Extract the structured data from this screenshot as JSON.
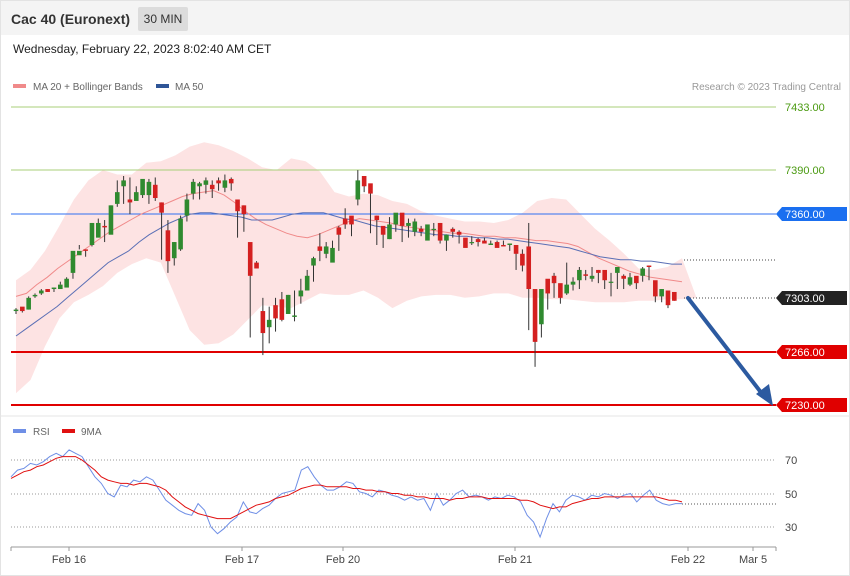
{
  "header": {
    "title": "Cac 40 (Euronext)",
    "interval": "30 MIN",
    "datetime": "Wednesday, February 22, 2023 8:02:40 AM CET"
  },
  "legend": {
    "ma20_label": "MA 20 + Bollinger Bands",
    "ma50_label": "MA 50",
    "credit": "Research © 2023 Trading Central",
    "rsi_label": "RSI",
    "rsi_ma_label": "9MA"
  },
  "colors": {
    "bull": "#2f8a2f",
    "bear": "#d42020",
    "ma20": "#f08a8a",
    "ma50": "#5a6fb5",
    "bollinger": "#fde3e3",
    "resistance": "#a8cf7a",
    "pivot": "#2f6ff0",
    "support": "#e00000",
    "arrow": "#2c5aa0",
    "rsi": "#6f8fe6",
    "rsi_ma": "#e01010"
  },
  "chart_data": {
    "type": "candlestick",
    "ylim": [
      7416,
      7236
    ],
    "levels": [
      {
        "value": 7433.0,
        "label": "7433.00",
        "kind": "resistance"
      },
      {
        "value": 7390.0,
        "label": "7390.00",
        "kind": "resistance"
      },
      {
        "value": 7360.0,
        "label": "7360.00",
        "kind": "pivot"
      },
      {
        "value": 7303.0,
        "label": "7303.00",
        "kind": "last"
      },
      {
        "value": 7266.0,
        "label": "7266.00",
        "kind": "support"
      },
      {
        "value": 7230.0,
        "label": "7230.00",
        "kind": "support"
      }
    ],
    "x_ticks": [
      "Feb 16",
      "Feb 17",
      "Feb 20",
      "Feb 21",
      "Feb 22",
      "Mar 5"
    ],
    "candles": [
      [
        7294,
        7295,
        7296,
        7292
      ],
      [
        7297,
        7294,
        7294,
        7293
      ],
      [
        7295,
        7303,
        7304,
        7295
      ],
      [
        7304,
        7305,
        7306,
        7303
      ],
      [
        7306,
        7308,
        7309,
        7305
      ],
      [
        7309,
        7307,
        7309,
        7307
      ],
      [
        7309,
        7310,
        7310,
        7307
      ],
      [
        7309,
        7312,
        7314,
        7312
      ],
      [
        7310,
        7316,
        7317,
        7314
      ],
      [
        7320,
        7335,
        7331,
        7316
      ],
      [
        7332,
        7335,
        7339,
        7336
      ],
      [
        7336,
        7335,
        7336,
        7331
      ],
      [
        7339,
        7354,
        7354,
        7338
      ],
      [
        7344,
        7354,
        7357,
        7351
      ],
      [
        7352,
        7351,
        7356,
        7341
      ],
      [
        7346,
        7366,
        7366,
        7358
      ],
      [
        7367,
        7375,
        7383,
        7365
      ],
      [
        7379,
        7383,
        7386,
        7367
      ],
      [
        7370,
        7368,
        7385,
        7360
      ],
      [
        7369,
        7375,
        7379,
        7371
      ],
      [
        7373,
        7384,
        7383,
        7371
      ],
      [
        7373,
        7382,
        7384,
        7367
      ],
      [
        7380,
        7371,
        7385,
        7369
      ],
      [
        7368,
        7361,
        7368,
        7329
      ],
      [
        7349,
        7328,
        7356,
        7320
      ],
      [
        7330,
        7341,
        7341,
        7325
      ],
      [
        7336,
        7357,
        7359,
        7335
      ],
      [
        7359,
        7370,
        7374,
        7355
      ],
      [
        7374,
        7382,
        7384,
        7370
      ],
      [
        7379,
        7381,
        7382,
        7370
      ],
      [
        7380,
        7383,
        7385,
        7374
      ],
      [
        7380,
        7377,
        7383,
        7371
      ],
      [
        7383,
        7381,
        7385,
        7376
      ],
      [
        7378,
        7383,
        7387,
        7375
      ],
      [
        7384,
        7381,
        7385,
        7376
      ],
      [
        7370,
        7362,
        7368,
        7344
      ],
      [
        7366,
        7360,
        7366,
        7348
      ],
      [
        7341,
        7318,
        7324,
        7276
      ],
      [
        7327,
        7323,
        7328,
        7327
      ],
      [
        7294,
        7279,
        7303,
        7264
      ],
      [
        7283,
        7288,
        7297,
        7272
      ],
      [
        7298,
        7289,
        7303,
        7280
      ],
      [
        7302,
        7288,
        7307,
        7287
      ],
      [
        7292,
        7305,
        7305,
        7297
      ],
      [
        7290,
        7291,
        7308,
        7287
      ],
      [
        7304,
        7308,
        7316,
        7299
      ],
      [
        7308,
        7318,
        7322,
        7309
      ],
      [
        7325,
        7330,
        7331,
        7314
      ],
      [
        7338,
        7335,
        7347,
        7328
      ],
      [
        7333,
        7338,
        7341,
        7330
      ],
      [
        7327,
        7337,
        7342,
        7332
      ],
      [
        7351,
        7346,
        7352,
        7335
      ],
      [
        7357,
        7353,
        7364,
        7350
      ],
      [
        7359,
        7353,
        7357,
        7345
      ],
      [
        7370,
        7383,
        7390,
        7366
      ],
      [
        7386,
        7379,
        7384,
        7375
      ],
      [
        7381,
        7374,
        7375,
        7347
      ],
      [
        7359,
        7356,
        7359,
        7339
      ],
      [
        7352,
        7346,
        7349,
        7337
      ],
      [
        7343,
        7353,
        7358,
        7343
      ],
      [
        7353,
        7361,
        7359,
        7348
      ],
      [
        7361,
        7352,
        7355,
        7341
      ],
      [
        7352,
        7354,
        7357,
        7344
      ],
      [
        7348,
        7355,
        7357,
        7345
      ],
      [
        7350,
        7348,
        7352,
        7345
      ],
      [
        7342,
        7353,
        7351,
        7347
      ],
      [
        7350,
        7350,
        7354,
        7345
      ],
      [
        7354,
        7342,
        7354,
        7340
      ],
      [
        7342,
        7346,
        7346,
        7335
      ],
      [
        7350,
        7348,
        7351,
        7344
      ],
      [
        7348,
        7346,
        7349,
        7340
      ],
      [
        7344,
        7337,
        7343,
        7340
      ],
      [
        7341,
        7341,
        7345,
        7339
      ],
      [
        7343,
        7341,
        7344,
        7338
      ],
      [
        7342,
        7340,
        7344,
        7341
      ],
      [
        7339,
        7340,
        7342,
        7339
      ],
      [
        7341,
        7337,
        7342,
        7340
      ],
      [
        7339,
        7338,
        7342,
        7339
      ],
      [
        7339,
        7340,
        7340,
        7335
      ],
      [
        7339,
        7333,
        7336,
        7322
      ],
      [
        7333,
        7325,
        7336,
        7321
      ],
      [
        7338,
        7309,
        7354,
        7281
      ],
      [
        7309,
        7273,
        7298,
        7256
      ],
      [
        7285,
        7309,
        7293,
        7276
      ],
      [
        7316,
        7306,
        7314,
        7295
      ],
      [
        7318,
        7313,
        7320,
        7303
      ],
      [
        7313,
        7303,
        7306,
        7299
      ],
      [
        7306,
        7312,
        7327,
        7305
      ],
      [
        7312,
        7314,
        7317,
        7308
      ],
      [
        7315,
        7322,
        7324,
        7309
      ],
      [
        7319,
        7318,
        7322,
        7315
      ],
      [
        7316,
        7318,
        7324,
        7314
      ],
      [
        7322,
        7320,
        7322,
        7313
      ],
      [
        7322,
        7315,
        7320,
        7309
      ],
      [
        7314,
        7314,
        7320,
        7304
      ],
      [
        7320,
        7324,
        7324,
        7309
      ],
      [
        7318,
        7316,
        7319,
        7309
      ],
      [
        7312,
        7317,
        7320,
        7311
      ],
      [
        7318,
        7313,
        7316,
        7309
      ],
      [
        7318,
        7323,
        7324,
        7314
      ],
      [
        7325,
        7324,
        7325,
        7315
      ],
      [
        7315,
        7304,
        7313,
        7300
      ],
      [
        7304,
        7309,
        7309,
        7300
      ],
      [
        7308,
        7298,
        7308,
        7296
      ],
      [
        7307,
        7301,
        7301,
        7302
      ]
    ],
    "ma20": [
      7304,
      7306,
      7312,
      7317,
      7323,
      7328,
      7333,
      7338,
      7343,
      7348,
      7352,
      7356,
      7360,
      7363,
      7366,
      7369,
      7372,
      7374,
      7375,
      7376,
      7373,
      7368,
      7362,
      7357,
      7353,
      7350,
      7347,
      7345,
      7344,
      7346,
      7349,
      7352,
      7355,
      7357,
      7356,
      7355,
      7354,
      7352,
      7351,
      7350,
      7349,
      7348,
      7347,
      7347,
      7346,
      7345,
      7345,
      7344,
      7344,
      7343,
      7342,
      7342,
      7341,
      7340,
      7338,
      7334,
      7330,
      7327,
      7324,
      7321,
      7319,
      7317,
      7316,
      7315,
      7314
    ],
    "ma50": [
      7277,
      7282,
      7287,
      7292,
      7297,
      7303,
      7309,
      7315,
      7321,
      7327,
      7331,
      7335,
      7341,
      7346,
      7350,
      7354,
      7357,
      7360,
      7361,
      7361,
      7360,
      7359,
      7358,
      7356,
      7356,
      7356,
      7358,
      7360,
      7361,
      7361,
      7361,
      7359,
      7357,
      7356,
      7354,
      7352,
      7351,
      7350,
      7349,
      7348,
      7347,
      7346,
      7346,
      7345,
      7345,
      7344,
      7344,
      7343,
      7343,
      7342,
      7341,
      7340,
      7339,
      7338,
      7337,
      7335,
      7333,
      7331,
      7330,
      7329,
      7329,
      7328,
      7328,
      7327,
      7326,
      7326
    ],
    "boll_upper": [
      7315,
      7322,
      7335,
      7352,
      7370,
      7383,
      7390,
      7387,
      7387,
      7395,
      7396,
      7400,
      7406,
      7409,
      7407,
      7403,
      7398,
      7392,
      7390,
      7398,
      7396,
      7389,
      7375,
      7372,
      7374,
      7373,
      7369,
      7367,
      7362,
      7359,
      7357,
      7355,
      7355,
      7354,
      7356,
      7361,
      7369,
      7371,
      7370,
      7360,
      7350,
      7342,
      7333,
      7323,
      7322,
      7324,
      7330
    ],
    "boll_lower": [
      7238,
      7247,
      7270,
      7289,
      7300,
      7305,
      7311,
      7320,
      7326,
      7330,
      7327,
      7304,
      7281,
      7271,
      7272,
      7278,
      7288,
      7298,
      7297,
      7296,
      7301,
      7306,
      7305,
      7305,
      7308,
      7303,
      7296,
      7301,
      7304,
      7305,
      7305,
      7303,
      7304,
      7306,
      7306,
      7303,
      7303,
      7302,
      7302,
      7301,
      7300,
      7300,
      7300,
      7301,
      7301,
      7302,
      7302,
      7303
    ],
    "rsi_panel": {
      "ylim": [
        78,
        20
      ],
      "ticks": [
        70,
        50,
        30
      ],
      "rsi": [
        60,
        64,
        65,
        68,
        67,
        69,
        72,
        74,
        72,
        76,
        74,
        72,
        66,
        60,
        56,
        50,
        48,
        55,
        54,
        58,
        57,
        60,
        58,
        52,
        46,
        43,
        40,
        38,
        37,
        44,
        40,
        30,
        26,
        29,
        33,
        36,
        45,
        39,
        38,
        41,
        43,
        47,
        50,
        51,
        52,
        64,
        66,
        60,
        55,
        52,
        52,
        54,
        57,
        56,
        51,
        50,
        48,
        52,
        51,
        49,
        48,
        46,
        48,
        46,
        47,
        40,
        50,
        43,
        46,
        50,
        52,
        48,
        49,
        48,
        46,
        48,
        47,
        49,
        48,
        45,
        37,
        33,
        24,
        35,
        44,
        39,
        46,
        49,
        48,
        46,
        49,
        48,
        50,
        49,
        47,
        49,
        50,
        45,
        49,
        52,
        46,
        44,
        43,
        44,
        44
      ],
      "rsi_ma": [
        59,
        61,
        63,
        64,
        66,
        67,
        69,
        71,
        72,
        72,
        72,
        70,
        67,
        64,
        60,
        58,
        57,
        56,
        56,
        55,
        56,
        56,
        55,
        54,
        52,
        48,
        45,
        42,
        40,
        38,
        37,
        36,
        35,
        35,
        35,
        37,
        39,
        41,
        43,
        44,
        45,
        47,
        48,
        49,
        51,
        53,
        54,
        55,
        55,
        54,
        54,
        54,
        54,
        53,
        53,
        52,
        52,
        51,
        51,
        50,
        50,
        49,
        49,
        48,
        48,
        47,
        47,
        47,
        46,
        47,
        47,
        48,
        48,
        48,
        47,
        47,
        47,
        47,
        47,
        46,
        46,
        45,
        43,
        42,
        41,
        42,
        42,
        44,
        45,
        46,
        47,
        47,
        48,
        48,
        48,
        48,
        48,
        48,
        48,
        48,
        48,
        47,
        46,
        46,
        45
      ]
    }
  }
}
